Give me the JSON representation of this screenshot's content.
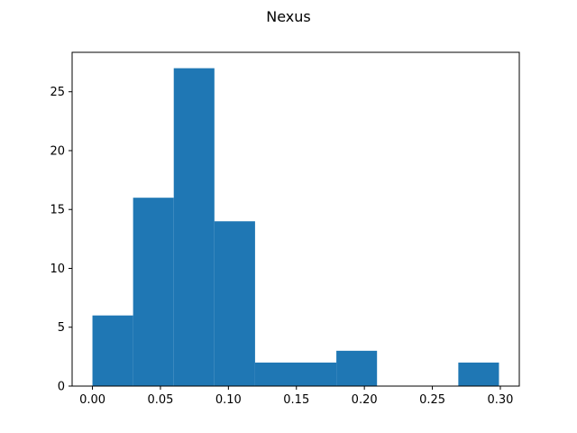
{
  "chart_data": {
    "type": "bar",
    "title": "Nexus",
    "xlabel": "",
    "ylabel": "",
    "bin_edges": [
      0.0,
      0.0299,
      0.0598,
      0.0897,
      0.1196,
      0.1495,
      0.1794,
      0.2093,
      0.2392,
      0.2691,
      0.299
    ],
    "values": [
      6,
      16,
      27,
      14,
      2,
      2,
      3,
      0,
      0,
      2
    ],
    "xlim": [
      -0.01495,
      0.31395
    ],
    "ylim": [
      0,
      28.35
    ],
    "xticks": [
      {
        "value": 0.0,
        "label": "0.00"
      },
      {
        "value": 0.05,
        "label": "0.05"
      },
      {
        "value": 0.1,
        "label": "0.10"
      },
      {
        "value": 0.15,
        "label": "0.15"
      },
      {
        "value": 0.2,
        "label": "0.20"
      },
      {
        "value": 0.25,
        "label": "0.25"
      },
      {
        "value": 0.3,
        "label": "0.30"
      }
    ],
    "yticks": [
      {
        "value": 0,
        "label": "0"
      },
      {
        "value": 5,
        "label": "5"
      },
      {
        "value": 10,
        "label": "10"
      },
      {
        "value": 15,
        "label": "15"
      },
      {
        "value": 20,
        "label": "20"
      },
      {
        "value": 25,
        "label": "25"
      }
    ],
    "grid": false,
    "bar_color": "#1f77b4"
  }
}
